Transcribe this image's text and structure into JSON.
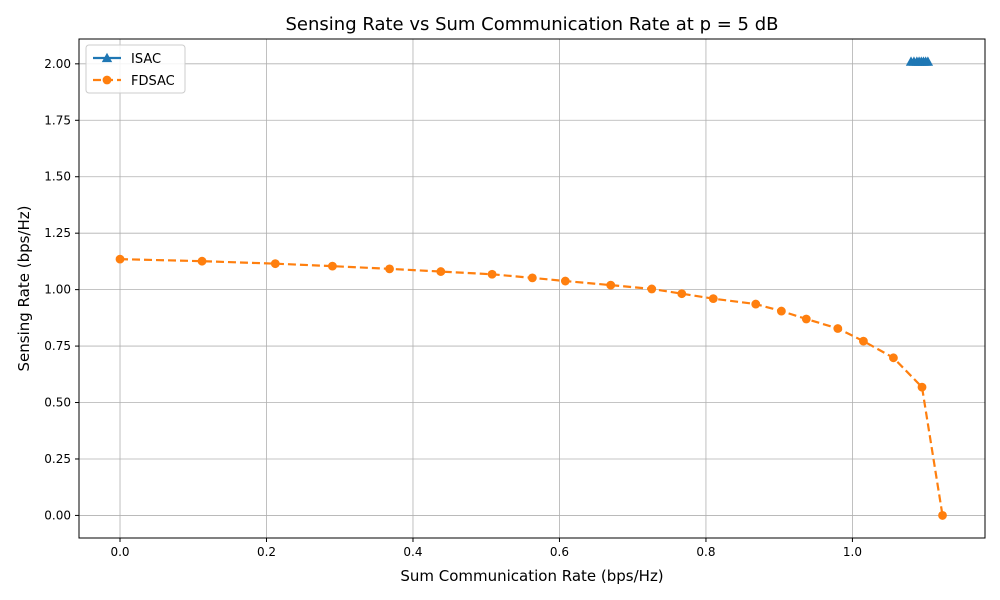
{
  "chart_data": {
    "type": "line",
    "title": "Sensing Rate vs Sum Communication Rate at p = 5 dB",
    "xlabel": "Sum Communication Rate (bps/Hz)",
    "ylabel": "Sensing Rate (bps/Hz)",
    "xlim": [
      -0.056,
      1.181
    ],
    "ylim": [
      -0.1,
      2.11
    ],
    "xticks": [
      "0.0",
      "0.2",
      "0.4",
      "0.6",
      "0.8",
      "1.0"
    ],
    "xtick_values": [
      0.0,
      0.2,
      0.4,
      0.6,
      0.8,
      1.0
    ],
    "yticks": [
      "0.00",
      "0.25",
      "0.50",
      "0.75",
      "1.00",
      "1.25",
      "1.50",
      "1.75",
      "2.00"
    ],
    "ytick_values": [
      0.0,
      0.25,
      0.5,
      0.75,
      1.0,
      1.25,
      1.5,
      1.75,
      2.0
    ],
    "grid": true,
    "legend_position": "top-left",
    "series": [
      {
        "name": "ISAC",
        "color": "#1f77b4",
        "marker": "triangle",
        "linestyle": "solid",
        "x": [
          1.08,
          1.084,
          1.088,
          1.091,
          1.094,
          1.097,
          1.1,
          1.103
        ],
        "y": [
          2.01,
          2.01,
          2.01,
          2.01,
          2.01,
          2.01,
          2.01,
          2.01
        ]
      },
      {
        "name": "FDSAC",
        "color": "#ff7f0e",
        "marker": "circle",
        "linestyle": "dashed",
        "x": [
          0.0,
          0.112,
          0.212,
          0.29,
          0.368,
          0.438,
          0.508,
          0.563,
          0.608,
          0.67,
          0.726,
          0.767,
          0.81,
          0.868,
          0.903,
          0.937,
          0.98,
          1.015,
          1.056,
          1.095,
          1.123
        ],
        "y": [
          1.135,
          1.126,
          1.115,
          1.104,
          1.092,
          1.08,
          1.068,
          1.052,
          1.038,
          1.02,
          1.003,
          0.982,
          0.96,
          0.936,
          0.905,
          0.87,
          0.828,
          0.772,
          0.698,
          0.568,
          0.0
        ]
      }
    ]
  }
}
